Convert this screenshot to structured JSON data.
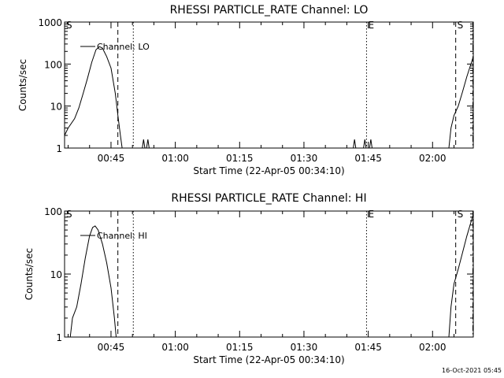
{
  "footer_timestamp": "16-Oct-2021 05:45",
  "chart_data": [
    {
      "type": "line",
      "title": "RHESSI PARTICLE_RATE Channel: LO",
      "xlabel": "Start Time (22-Apr-05 00:34:10)",
      "ylabel": "Counts/sec",
      "yscale": "log",
      "ylim": [
        1,
        1000
      ],
      "xlim_minutes": [
        34.17,
        129.5
      ],
      "x_tick_labels": [
        "00:45",
        "01:00",
        "01:15",
        "01:30",
        "01:45",
        "02:00"
      ],
      "x_tick_minutes": [
        45,
        60,
        75,
        90,
        105,
        120
      ],
      "y_tick_labels": [
        "1",
        "10",
        "100",
        "1000"
      ],
      "y_tick_values": [
        1,
        10,
        100,
        1000
      ],
      "legend": "Channel: LO",
      "markers": [
        {
          "label": "S",
          "minute": 34.17,
          "style": "solid"
        },
        {
          "label": "",
          "minute": 46.6,
          "style": "dashed"
        },
        {
          "label": "",
          "minute": 50.2,
          "style": "dotted"
        },
        {
          "label": "E",
          "minute": 104.6,
          "style": "dotted"
        },
        {
          "label": "S",
          "minute": 125.4,
          "style": "dashed"
        },
        {
          "label": "",
          "minute": 129.4,
          "style": "dashdot"
        }
      ],
      "series": [
        {
          "segments": [
            [
              [
                34.17,
                2.0
              ],
              [
                35.0,
                3.0
              ],
              [
                36.5,
                5.0
              ],
              [
                37.5,
                9.0
              ],
              [
                38.5,
                20.0
              ],
              [
                39.5,
                45.0
              ],
              [
                40.5,
                110.0
              ],
              [
                41.5,
                220.0
              ],
              [
                42.3,
                260.0
              ],
              [
                43.0,
                240.0
              ],
              [
                44.0,
                150.0
              ],
              [
                45.0,
                80.0
              ],
              [
                46.0,
                20.0
              ],
              [
                46.6,
                6.0
              ],
              [
                47.2,
                2.0
              ],
              [
                47.6,
                1.0
              ]
            ],
            [
              [
                52.3,
                1.0
              ],
              [
                52.6,
                1.6
              ],
              [
                52.9,
                1.0
              ]
            ],
            [
              [
                53.3,
                1.0
              ],
              [
                53.6,
                1.6
              ],
              [
                53.9,
                1.0
              ]
            ],
            [
              [
                101.5,
                1.0
              ],
              [
                101.8,
                1.6
              ],
              [
                102.1,
                1.0
              ]
            ],
            [
              [
                103.9,
                1.0
              ],
              [
                104.2,
                1.6
              ],
              [
                104.5,
                1.0
              ]
            ],
            [
              [
                105.3,
                1.0
              ],
              [
                105.6,
                1.6
              ],
              [
                105.9,
                1.0
              ]
            ],
            [
              [
                123.8,
                1.0
              ],
              [
                124.3,
                3.0
              ],
              [
                125.0,
                6.0
              ],
              [
                126.0,
                10.0
              ],
              [
                127.0,
                22.0
              ],
              [
                128.0,
                50.0
              ],
              [
                129.4,
                140.0
              ]
            ]
          ]
        }
      ]
    },
    {
      "type": "line",
      "title": "RHESSI PARTICLE_RATE Channel: HI",
      "xlabel": "Start Time (22-Apr-05 00:34:10)",
      "ylabel": "Counts/sec",
      "yscale": "log",
      "ylim": [
        1,
        100
      ],
      "xlim_minutes": [
        34.17,
        129.5
      ],
      "x_tick_labels": [
        "00:45",
        "01:00",
        "01:15",
        "01:30",
        "01:45",
        "02:00"
      ],
      "x_tick_minutes": [
        45,
        60,
        75,
        90,
        105,
        120
      ],
      "y_tick_labels": [
        "1",
        "10",
        "100"
      ],
      "y_tick_values": [
        1,
        10,
        100
      ],
      "legend": "Channel: HI",
      "markers": [
        {
          "label": "S",
          "minute": 34.17,
          "style": "solid"
        },
        {
          "label": "",
          "minute": 46.6,
          "style": "dashed"
        },
        {
          "label": "",
          "minute": 50.2,
          "style": "dotted"
        },
        {
          "label": "E",
          "minute": 104.6,
          "style": "dotted"
        },
        {
          "label": "S",
          "minute": 125.4,
          "style": "dashed"
        },
        {
          "label": "",
          "minute": 129.4,
          "style": "dashdot"
        }
      ],
      "series": [
        {
          "segments": [
            [
              [
                35.5,
                1.0
              ],
              [
                36.0,
                2.0
              ],
              [
                37.0,
                3.0
              ],
              [
                38.0,
                7.0
              ],
              [
                39.0,
                18.0
              ],
              [
                40.0,
                40.0
              ],
              [
                40.7,
                55.0
              ],
              [
                41.3,
                58.0
              ],
              [
                42.0,
                50.0
              ],
              [
                43.0,
                30.0
              ],
              [
                44.0,
                15.0
              ],
              [
                45.0,
                6.0
              ],
              [
                45.8,
                2.0
              ],
              [
                46.2,
                1.0
              ]
            ],
            [
              [
                123.8,
                1.0
              ],
              [
                124.3,
                3.0
              ],
              [
                125.0,
                7.0
              ],
              [
                126.0,
                12.0
              ],
              [
                127.0,
                22.0
              ],
              [
                128.0,
                40.0
              ],
              [
                129.4,
                85.0
              ]
            ]
          ]
        }
      ]
    }
  ]
}
